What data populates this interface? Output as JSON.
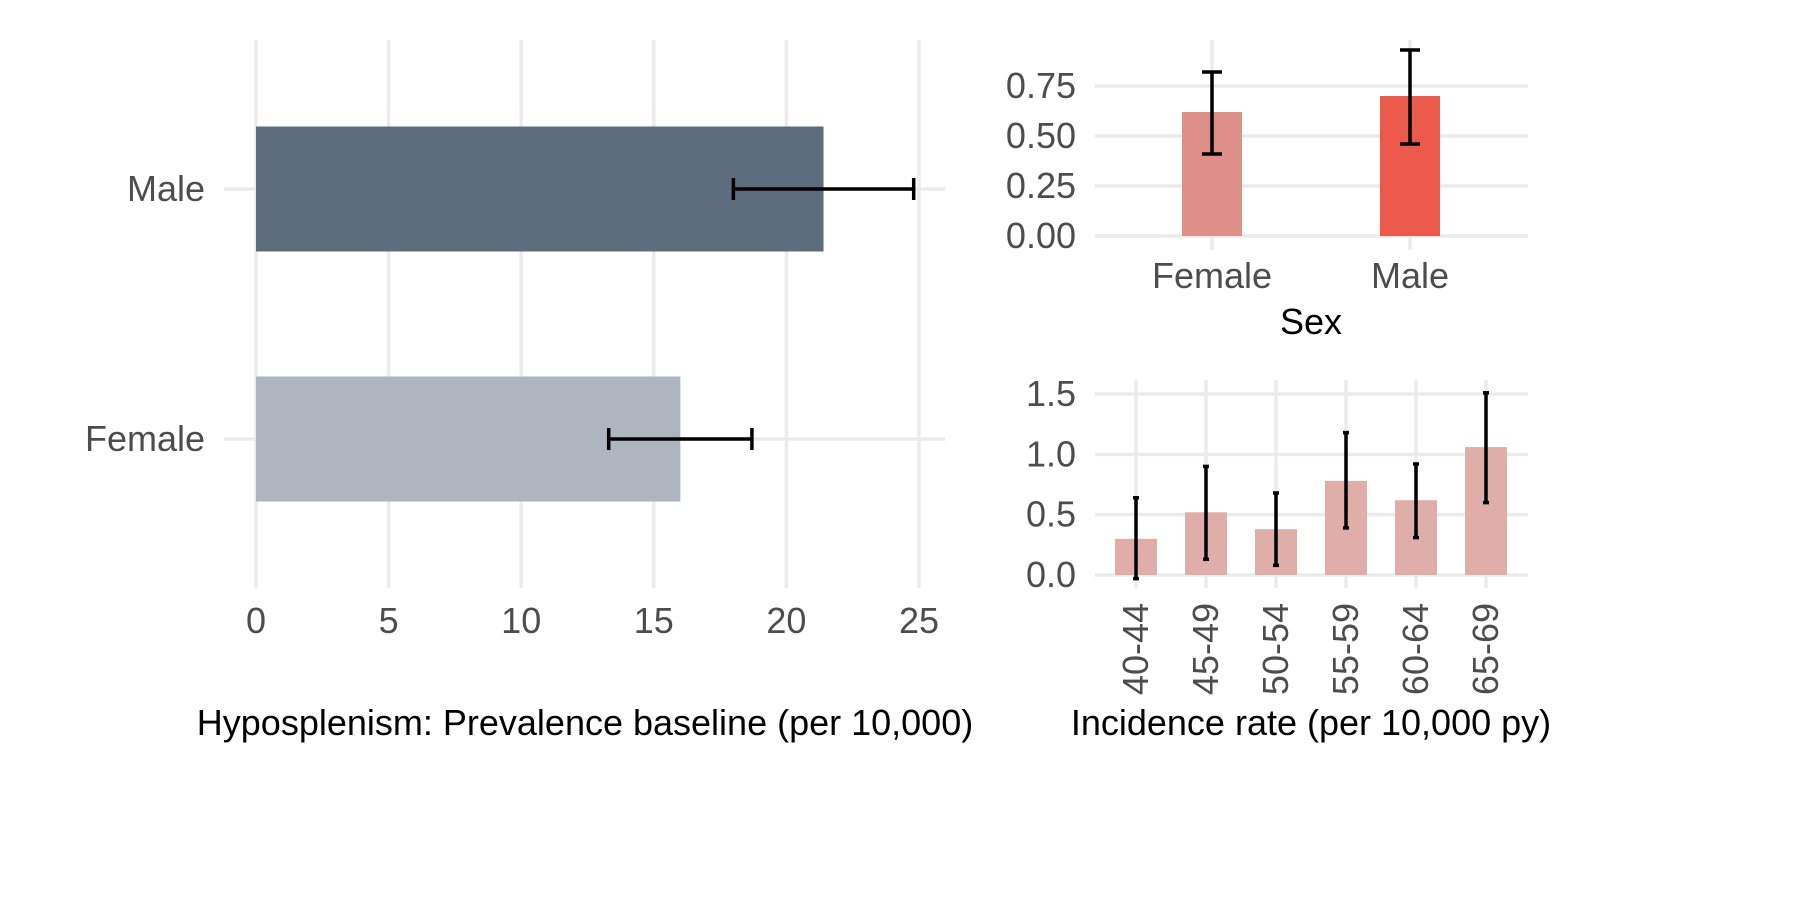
{
  "chart_data": [
    {
      "type": "bar",
      "orientation": "horizontal",
      "categories": [
        "Male",
        "Female"
      ],
      "values": [
        21.4,
        16.0
      ],
      "error_low": [
        18.0,
        13.3
      ],
      "error_high": [
        24.8,
        18.7
      ],
      "bar_colors": [
        "#5d6d7d",
        "#adb5be"
      ],
      "xlabel": "Hyposplenism: Prevalence baseline (per 10,000)",
      "ylabel": "",
      "xlim": [
        0,
        26
      ],
      "xticks": [
        "0",
        "5",
        "10",
        "15",
        "20",
        "25"
      ],
      "xtick_values": [
        0,
        5,
        10,
        15,
        20,
        25
      ],
      "grid": true,
      "legend": "none"
    },
    {
      "type": "bar",
      "categories": [
        "Female",
        "Male"
      ],
      "values": [
        0.62,
        0.7
      ],
      "error_low": [
        0.41,
        0.46
      ],
      "error_high": [
        0.82,
        0.93
      ],
      "bar_colors": [
        "#dd8f88",
        "#ec5a4b"
      ],
      "xlabel": "Sex",
      "ylabel": "",
      "ylim": [
        0,
        0.97
      ],
      "yticks": [
        "0.00",
        "0.25",
        "0.50",
        "0.75"
      ],
      "ytick_values": [
        0,
        0.25,
        0.5,
        0.75
      ],
      "grid": true,
      "legend": "none"
    },
    {
      "type": "bar",
      "categories": [
        "40-44",
        "45-49",
        "50-54",
        "55-59",
        "60-64",
        "65-69"
      ],
      "values": [
        0.3,
        0.52,
        0.38,
        0.78,
        0.62,
        1.06
      ],
      "error_low": [
        -0.03,
        0.13,
        0.08,
        0.39,
        0.31,
        0.6
      ],
      "error_high": [
        0.64,
        0.9,
        0.68,
        1.18,
        0.92,
        1.51
      ],
      "bar_colors": [
        "#dfaea9"
      ],
      "xlabel": "Incidence rate (per 10,000 py)",
      "ylabel": "",
      "ylim": [
        -0.05,
        1.58
      ],
      "yticks": [
        "0.0",
        "0.5",
        "1.0",
        "1.5"
      ],
      "ytick_values": [
        0,
        0.5,
        1.0,
        1.5
      ],
      "xtick_rotation": "vertical",
      "grid": true,
      "legend": "none"
    }
  ]
}
